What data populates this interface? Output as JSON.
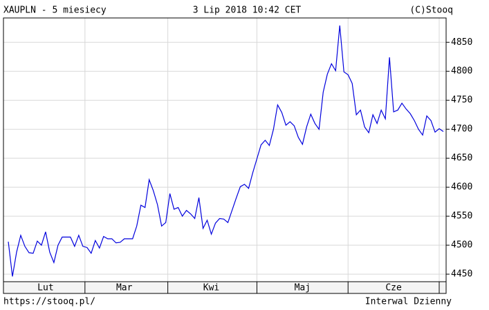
{
  "chart_data": {
    "type": "line",
    "title": "XAUPLN - 5 miesiecy",
    "subtitle": "3 Lip 2018 10:42 CET",
    "source": "(C)Stooq",
    "url": "https://stooq.pl/",
    "interval": "Interwal Dzienny",
    "categories": [
      null,
      null,
      null,
      null,
      null,
      null,
      null,
      null,
      null,
      "Lut",
      null,
      null,
      null,
      null,
      null,
      null,
      null,
      null,
      null,
      null,
      null,
      null,
      null,
      null,
      null,
      null,
      null,
      null,
      "Mar",
      null,
      null,
      null,
      null,
      null,
      null,
      null,
      null,
      null,
      null,
      null,
      null,
      null,
      null,
      null,
      null,
      null,
      null,
      null,
      null,
      "Kwi",
      null,
      null,
      null,
      null,
      null,
      null,
      null,
      null,
      null,
      null,
      null,
      null,
      null,
      null,
      null,
      null,
      null,
      null,
      null,
      null,
      null,
      "Maj",
      null,
      null,
      null,
      null,
      null,
      null,
      null,
      null,
      null,
      null,
      null,
      null,
      null,
      null,
      null,
      null,
      null,
      null,
      null,
      null,
      null,
      "Cze",
      null,
      null,
      null,
      null,
      null,
      null,
      null,
      null,
      null,
      null,
      null,
      null
    ],
    "series": [
      {
        "name": "XAUPLN",
        "color": "#0000dd",
        "values": [
          4506,
          4446,
          4488,
          4517,
          4498,
          4487,
          4486,
          4507,
          4500,
          4523,
          4488,
          4470,
          4500,
          4514,
          4514,
          4514,
          4498,
          4517,
          4498,
          4496,
          4486,
          4508,
          4495,
          4515,
          4511,
          4511,
          4504,
          4505,
          4511,
          4511,
          4511,
          4533,
          4569,
          4565,
          4613,
          4594,
          4570,
          4533,
          4539,
          4589,
          4562,
          4565,
          4550,
          4560,
          4554,
          4546,
          4582,
          4529,
          4543,
          4519,
          4538,
          4546,
          4545,
          4539,
          4560,
          4581,
          4601,
          4605,
          4598,
          4625,
          4649,
          4673,
          4681,
          4672,
          4700,
          4742,
          4729,
          4707,
          4713,
          4706,
          4686,
          4674,
          4704,
          4726,
          4710,
          4700,
          4764,
          4795,
          4813,
          4801,
          4879,
          4799,
          4794,
          4779,
          4725,
          4733,
          4704,
          4694,
          4725,
          4710,
          4733,
          4718,
          4824,
          4730,
          4733,
          4745,
          4735,
          4727,
          4715,
          4700,
          4690,
          4723,
          4715,
          4695,
          4701,
          4696
        ]
      }
    ],
    "ylim": [
      4437,
      4892
    ],
    "yticks": [
      4450,
      4500,
      4550,
      4600,
      4650,
      4700,
      4750,
      4800,
      4850
    ],
    "grid": true
  }
}
